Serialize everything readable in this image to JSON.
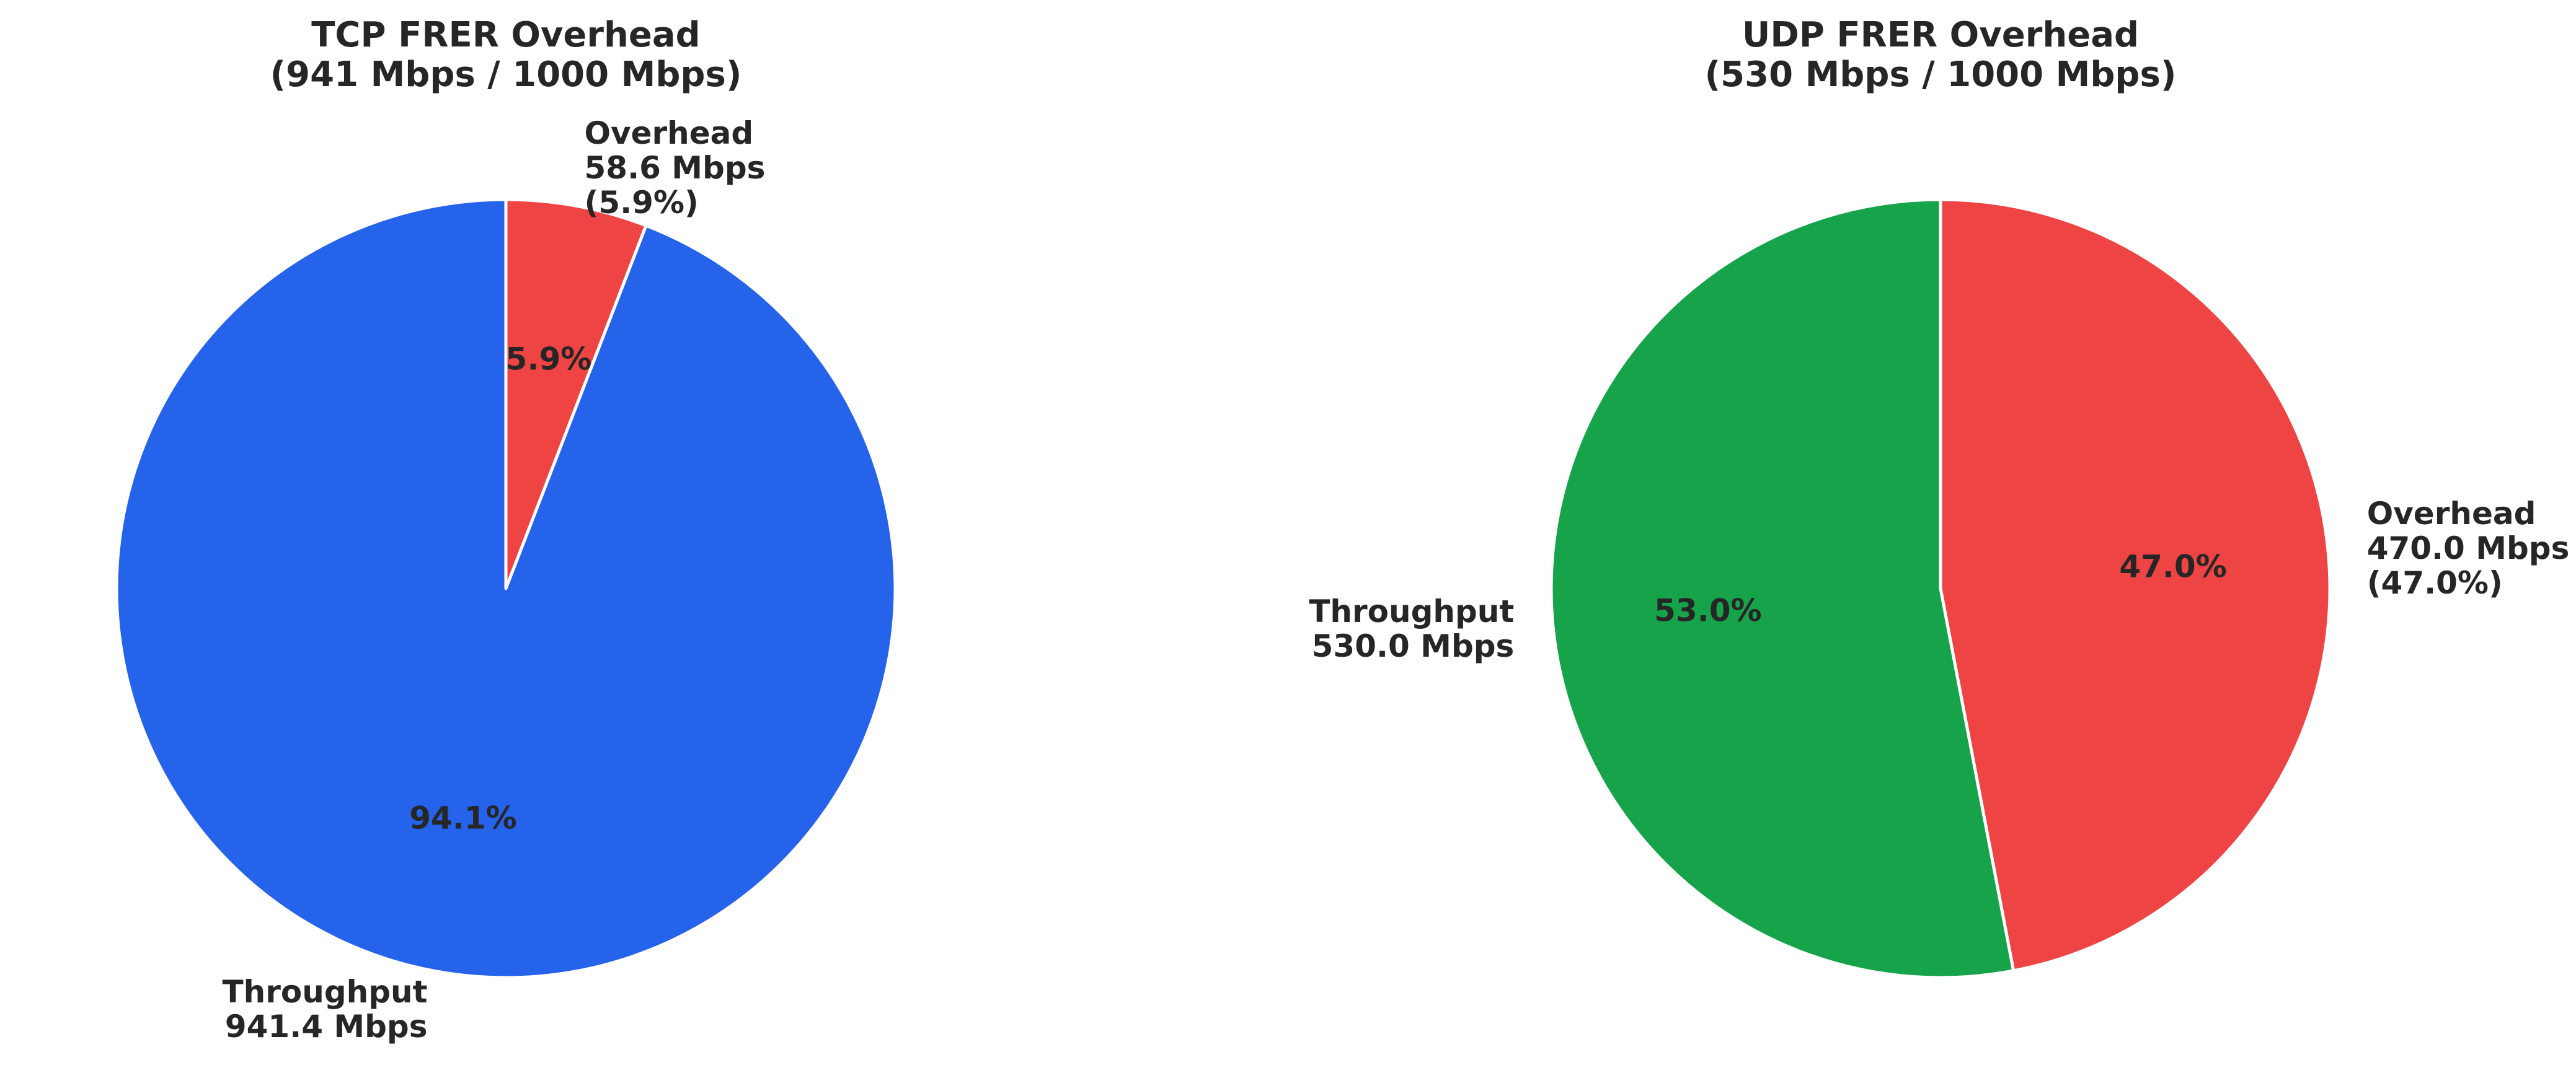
{
  "chart_data": [
    {
      "type": "pie",
      "title_lines": [
        "TCP FRER Overhead",
        "(941 Mbps / 1000 Mbps)"
      ],
      "unit": "Mbps",
      "start_angle_deg": 90,
      "direction": "clockwise",
      "slices": [
        {
          "name": "Overhead",
          "value": 58.6,
          "percent": 5.9,
          "color": "#ef4444",
          "label_lines": [
            "Overhead",
            "58.6 Mbps",
            "(5.9%)"
          ],
          "pct_label": "5.9%"
        },
        {
          "name": "Throughput",
          "value": 941.4,
          "percent": 94.1,
          "color": "#2563eb",
          "label_lines": [
            "Throughput",
            "941.4 Mbps"
          ],
          "pct_label": "94.1%"
        }
      ]
    },
    {
      "type": "pie",
      "title_lines": [
        "UDP FRER Overhead",
        "(530 Mbps / 1000 Mbps)"
      ],
      "unit": "Mbps",
      "start_angle_deg": 90,
      "direction": "clockwise",
      "slices": [
        {
          "name": "Overhead",
          "value": 470.0,
          "percent": 47.0,
          "color": "#ef4444",
          "label_lines": [
            "Overhead",
            "470.0 Mbps",
            "(47.0%)"
          ],
          "pct_label": "47.0%"
        },
        {
          "name": "Throughput",
          "value": 530.0,
          "percent": 53.0,
          "color": "#16a34a",
          "label_lines": [
            "Throughput",
            "530.0 Mbps"
          ],
          "pct_label": "53.0%"
        }
      ]
    }
  ]
}
